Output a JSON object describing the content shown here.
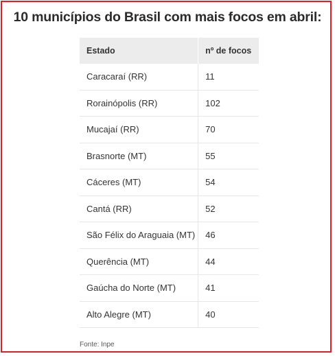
{
  "title": "10 municípios do Brasil com mais focos em abril:",
  "table": {
    "headers": [
      "Estado",
      "nº de focos"
    ],
    "rows": [
      {
        "estado": "Caracaraí (RR)",
        "focos": "11"
      },
      {
        "estado": "Rorainópolis (RR)",
        "focos": "102"
      },
      {
        "estado": "Mucajaí (RR)",
        "focos": "70"
      },
      {
        "estado": "Brasnorte (MT)",
        "focos": "55"
      },
      {
        "estado": "Cáceres (MT)",
        "focos": "54"
      },
      {
        "estado": "Cantá (RR)",
        "focos": "52"
      },
      {
        "estado": "São Félix do Araguaia (MT)",
        "focos": "46"
      },
      {
        "estado": "Querência (MT)",
        "focos": "44"
      },
      {
        "estado": "Gaúcha do Norte (MT)",
        "focos": "41"
      },
      {
        "estado": "Alto Alegre (MT)",
        "focos": "40"
      }
    ]
  },
  "source": "Fonte: Inpe",
  "colors": {
    "frame": "#e31b23",
    "header_bg": "#ececec",
    "text": "#333333"
  }
}
